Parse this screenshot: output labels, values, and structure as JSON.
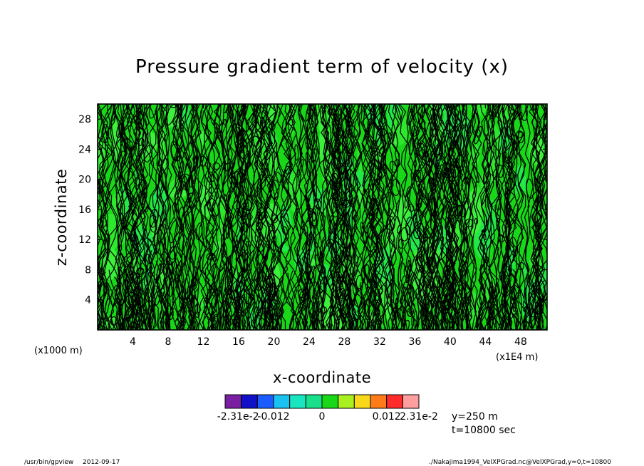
{
  "chart_data": {
    "type": "heatmap",
    "title": "Pressure gradient term of velocity (x)",
    "xlabel": "x-coordinate",
    "ylabel": "z-coordinate",
    "x_unit": "(x1E4 m)",
    "y_unit": "(x1000 m)",
    "x_ticks": [
      4,
      8,
      12,
      16,
      20,
      24,
      28,
      32,
      36,
      40,
      44,
      48
    ],
    "y_ticks": [
      4,
      8,
      12,
      16,
      20,
      24,
      28
    ],
    "xlim": [
      0,
      51
    ],
    "ylim": [
      0,
      30
    ],
    "colorbar": {
      "colors": [
        "#7a1fa2",
        "#1010c8",
        "#1a5cff",
        "#19c2f0",
        "#19e6c0",
        "#18e08a",
        "#18d818",
        "#a8f020",
        "#f8d818",
        "#ff7a18",
        "#ff2a2a",
        "#ff9e9e"
      ],
      "labels": [
        "-2.31e-2",
        "-0.012",
        "0",
        "0.012",
        "2.31e-2"
      ],
      "label_positions": [
        0,
        2,
        5,
        9,
        11
      ]
    },
    "fill_colors": [
      "#2ee82e",
      "#18d818",
      "#3cf03c",
      "#22e84a"
    ]
  },
  "annotations": {
    "y_slice": "y=250 m",
    "time": "t=10800 sec"
  },
  "footer": {
    "program": "/usr/bin/gpview",
    "date": "2012-09-17",
    "source": "./Nakajima1994_VelXPGrad.nc@VelXPGrad,y=0,t=10800"
  }
}
